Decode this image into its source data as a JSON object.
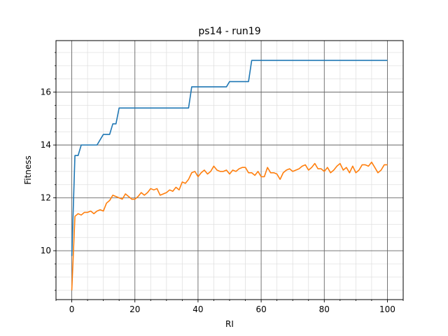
{
  "chart_data": {
    "type": "line",
    "title": "ps14 - run19",
    "xlabel": "RI",
    "ylabel": "Fitness",
    "xlim": [
      -5,
      105
    ],
    "ylim": [
      8.15,
      17.95
    ],
    "xticks": [
      0,
      20,
      40,
      60,
      80,
      100
    ],
    "yticks": [
      10,
      12,
      14,
      16
    ],
    "xtick_labels": [
      "0",
      "20",
      "40",
      "60",
      "80",
      "100"
    ],
    "ytick_labels": [
      "10",
      "12",
      "14",
      "16"
    ],
    "x_minor_step": 5,
    "y_minor_step": 0.5,
    "grid": true,
    "series": [
      {
        "color": "#1f77b4",
        "x": [
          0,
          1,
          2,
          3,
          4,
          5,
          6,
          7,
          8,
          9,
          10,
          11,
          12,
          13,
          14,
          15,
          16,
          17,
          18,
          19,
          20,
          21,
          22,
          23,
          24,
          25,
          26,
          27,
          28,
          29,
          30,
          31,
          32,
          33,
          34,
          35,
          36,
          37,
          38,
          39,
          40,
          41,
          42,
          43,
          44,
          45,
          46,
          47,
          48,
          49,
          50,
          51,
          52,
          53,
          54,
          55,
          56,
          57,
          58,
          59,
          60,
          61,
          62,
          63,
          64,
          65,
          66,
          67,
          68,
          69,
          70,
          71,
          72,
          73,
          74,
          75,
          76,
          77,
          78,
          79,
          80,
          81,
          82,
          83,
          84,
          85,
          86,
          87,
          88,
          89,
          90,
          91,
          92,
          93,
          94,
          95,
          96,
          97,
          98,
          99,
          100
        ],
        "values": [
          9.8,
          13.6,
          13.6,
          14.0,
          14.0,
          14.0,
          14.0,
          14.0,
          14.0,
          14.2,
          14.4,
          14.4,
          14.4,
          14.8,
          14.8,
          15.4,
          15.4,
          15.4,
          15.4,
          15.4,
          15.4,
          15.4,
          15.4,
          15.4,
          15.4,
          15.4,
          15.4,
          15.4,
          15.4,
          15.4,
          15.4,
          15.4,
          15.4,
          15.4,
          15.4,
          15.4,
          15.4,
          15.4,
          16.2,
          16.2,
          16.2,
          16.2,
          16.2,
          16.2,
          16.2,
          16.2,
          16.2,
          16.2,
          16.2,
          16.2,
          16.4,
          16.4,
          16.4,
          16.4,
          16.4,
          16.4,
          16.4,
          17.2,
          17.2,
          17.2,
          17.2,
          17.2,
          17.2,
          17.2,
          17.2,
          17.2,
          17.2,
          17.2,
          17.2,
          17.2,
          17.2,
          17.2,
          17.2,
          17.2,
          17.2,
          17.2,
          17.2,
          17.2,
          17.2,
          17.2,
          17.2,
          17.2,
          17.2,
          17.2,
          17.2,
          17.2,
          17.2,
          17.2,
          17.2,
          17.2,
          17.2,
          17.2,
          17.2,
          17.2,
          17.2,
          17.2,
          17.2,
          17.2,
          17.2,
          17.2,
          17.2
        ]
      },
      {
        "color": "#ff7f0e",
        "x": [
          0,
          1,
          2,
          3,
          4,
          5,
          6,
          7,
          8,
          9,
          10,
          11,
          12,
          13,
          14,
          15,
          16,
          17,
          18,
          19,
          20,
          21,
          22,
          23,
          24,
          25,
          26,
          27,
          28,
          29,
          30,
          31,
          32,
          33,
          34,
          35,
          36,
          37,
          38,
          39,
          40,
          41,
          42,
          43,
          44,
          45,
          46,
          47,
          48,
          49,
          50,
          51,
          52,
          53,
          54,
          55,
          56,
          57,
          58,
          59,
          60,
          61,
          62,
          63,
          64,
          65,
          66,
          67,
          68,
          69,
          70,
          71,
          72,
          73,
          74,
          75,
          76,
          77,
          78,
          79,
          80,
          81,
          82,
          83,
          84,
          85,
          86,
          87,
          88,
          89,
          90,
          91,
          92,
          93,
          94,
          95,
          96,
          97,
          98,
          99,
          100
        ],
        "values": [
          8.5,
          11.3,
          11.4,
          11.35,
          11.45,
          11.45,
          11.5,
          11.4,
          11.5,
          11.55,
          11.5,
          11.8,
          11.9,
          12.1,
          12.05,
          12.0,
          11.95,
          12.15,
          12.05,
          11.95,
          11.95,
          12.05,
          12.2,
          12.1,
          12.2,
          12.35,
          12.3,
          12.35,
          12.1,
          12.15,
          12.2,
          12.3,
          12.25,
          12.4,
          12.3,
          12.6,
          12.55,
          12.7,
          12.95,
          13.0,
          12.8,
          12.95,
          13.05,
          12.9,
          13.0,
          13.2,
          13.05,
          13.0,
          13.0,
          13.05,
          12.9,
          13.05,
          13.0,
          13.1,
          13.15,
          13.15,
          12.95,
          12.95,
          12.85,
          13.0,
          12.8,
          12.8,
          13.15,
          12.95,
          12.95,
          12.9,
          12.7,
          12.95,
          13.05,
          13.1,
          13.0,
          13.05,
          13.1,
          13.2,
          13.25,
          13.05,
          13.15,
          13.3,
          13.1,
          13.1,
          13.0,
          13.15,
          12.95,
          13.05,
          13.2,
          13.3,
          13.05,
          13.15,
          12.95,
          13.2,
          12.95,
          13.05,
          13.25,
          13.25,
          13.2,
          13.35,
          13.15,
          12.95,
          13.05,
          13.25,
          13.25
        ]
      }
    ]
  }
}
